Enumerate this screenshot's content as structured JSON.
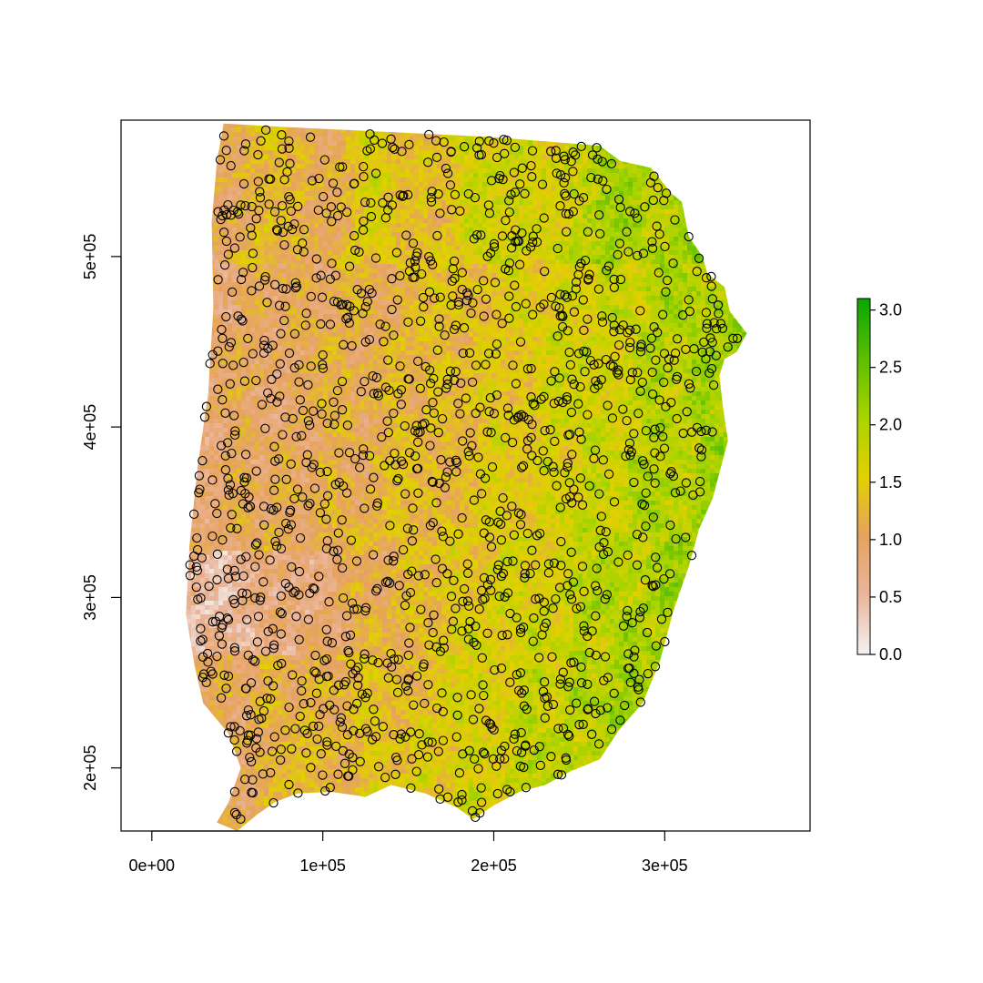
{
  "chart_data": {
    "type": "raster-map-with-points",
    "title": "",
    "xlabel": "",
    "ylabel": "",
    "xlim": [
      -18000,
      385000
    ],
    "ylim": [
      163000,
      580000
    ],
    "x_ticks": [
      {
        "value": 0,
        "label": "0e+00"
      },
      {
        "value": 100000,
        "label": "1e+05"
      },
      {
        "value": 200000,
        "label": "2e+05"
      },
      {
        "value": 300000,
        "label": "3e+05"
      }
    ],
    "y_ticks": [
      {
        "value": 200000,
        "label": "2e+05"
      },
      {
        "value": 300000,
        "label": "3e+05"
      },
      {
        "value": 400000,
        "label": "4e+05"
      },
      {
        "value": 500000,
        "label": "5e+05"
      }
    ],
    "legend": {
      "placement": "right",
      "min": 0.0,
      "max": 3.1,
      "ticks": [
        {
          "value": 0.0,
          "label": "0.0"
        },
        {
          "value": 0.5,
          "label": "0.5"
        },
        {
          "value": 1.0,
          "label": "1.0"
        },
        {
          "value": 1.5,
          "label": "1.5"
        },
        {
          "value": 2.0,
          "label": "2.0"
        },
        {
          "value": 2.5,
          "label": "2.5"
        },
        {
          "value": 3.0,
          "label": "3.0"
        }
      ],
      "colors": [
        "#f2f2f2",
        "#ebb59b",
        "#e6a25e",
        "#e3d000",
        "#a8d400",
        "#5cbe00",
        "#08a600"
      ]
    },
    "region_boundary": [
      [
        42000,
        578000
      ],
      [
        77000,
        576000
      ],
      [
        140000,
        573000
      ],
      [
        200000,
        570000
      ],
      [
        262000,
        565000
      ],
      [
        274000,
        556000
      ],
      [
        292000,
        552000
      ],
      [
        304000,
        537000
      ],
      [
        310000,
        532000
      ],
      [
        314000,
        512000
      ],
      [
        322000,
        500000
      ],
      [
        325000,
        490000
      ],
      [
        335000,
        482000
      ],
      [
        338000,
        468000
      ],
      [
        348000,
        455000
      ],
      [
        342000,
        444000
      ],
      [
        335000,
        440000
      ],
      [
        332000,
        430000
      ],
      [
        334000,
        412000
      ],
      [
        337000,
        392000
      ],
      [
        333000,
        377000
      ],
      [
        328000,
        358000
      ],
      [
        320000,
        340000
      ],
      [
        314000,
        318000
      ],
      [
        305000,
        292000
      ],
      [
        297000,
        262000
      ],
      [
        287000,
        238000
      ],
      [
        273000,
        222000
      ],
      [
        262000,
        205000
      ],
      [
        245000,
        198000
      ],
      [
        230000,
        190000
      ],
      [
        215000,
        186000
      ],
      [
        200000,
        178000
      ],
      [
        188000,
        170000
      ],
      [
        178000,
        177000
      ],
      [
        160000,
        185000
      ],
      [
        140000,
        190000
      ],
      [
        125000,
        183000
      ],
      [
        105000,
        186000
      ],
      [
        85000,
        185000
      ],
      [
        72000,
        180000
      ],
      [
        62000,
        173000
      ],
      [
        50000,
        163000
      ],
      [
        38000,
        168000
      ],
      [
        45000,
        180000
      ],
      [
        52000,
        200000
      ],
      [
        45000,
        220000
      ],
      [
        30000,
        238000
      ],
      [
        25000,
        260000
      ],
      [
        20000,
        290000
      ],
      [
        22000,
        330000
      ],
      [
        27000,
        378000
      ],
      [
        33000,
        420000
      ],
      [
        36000,
        470000
      ],
      [
        35000,
        520000
      ],
      [
        38000,
        555000
      ],
      [
        42000,
        578000
      ]
    ],
    "points_count": 1500
  }
}
